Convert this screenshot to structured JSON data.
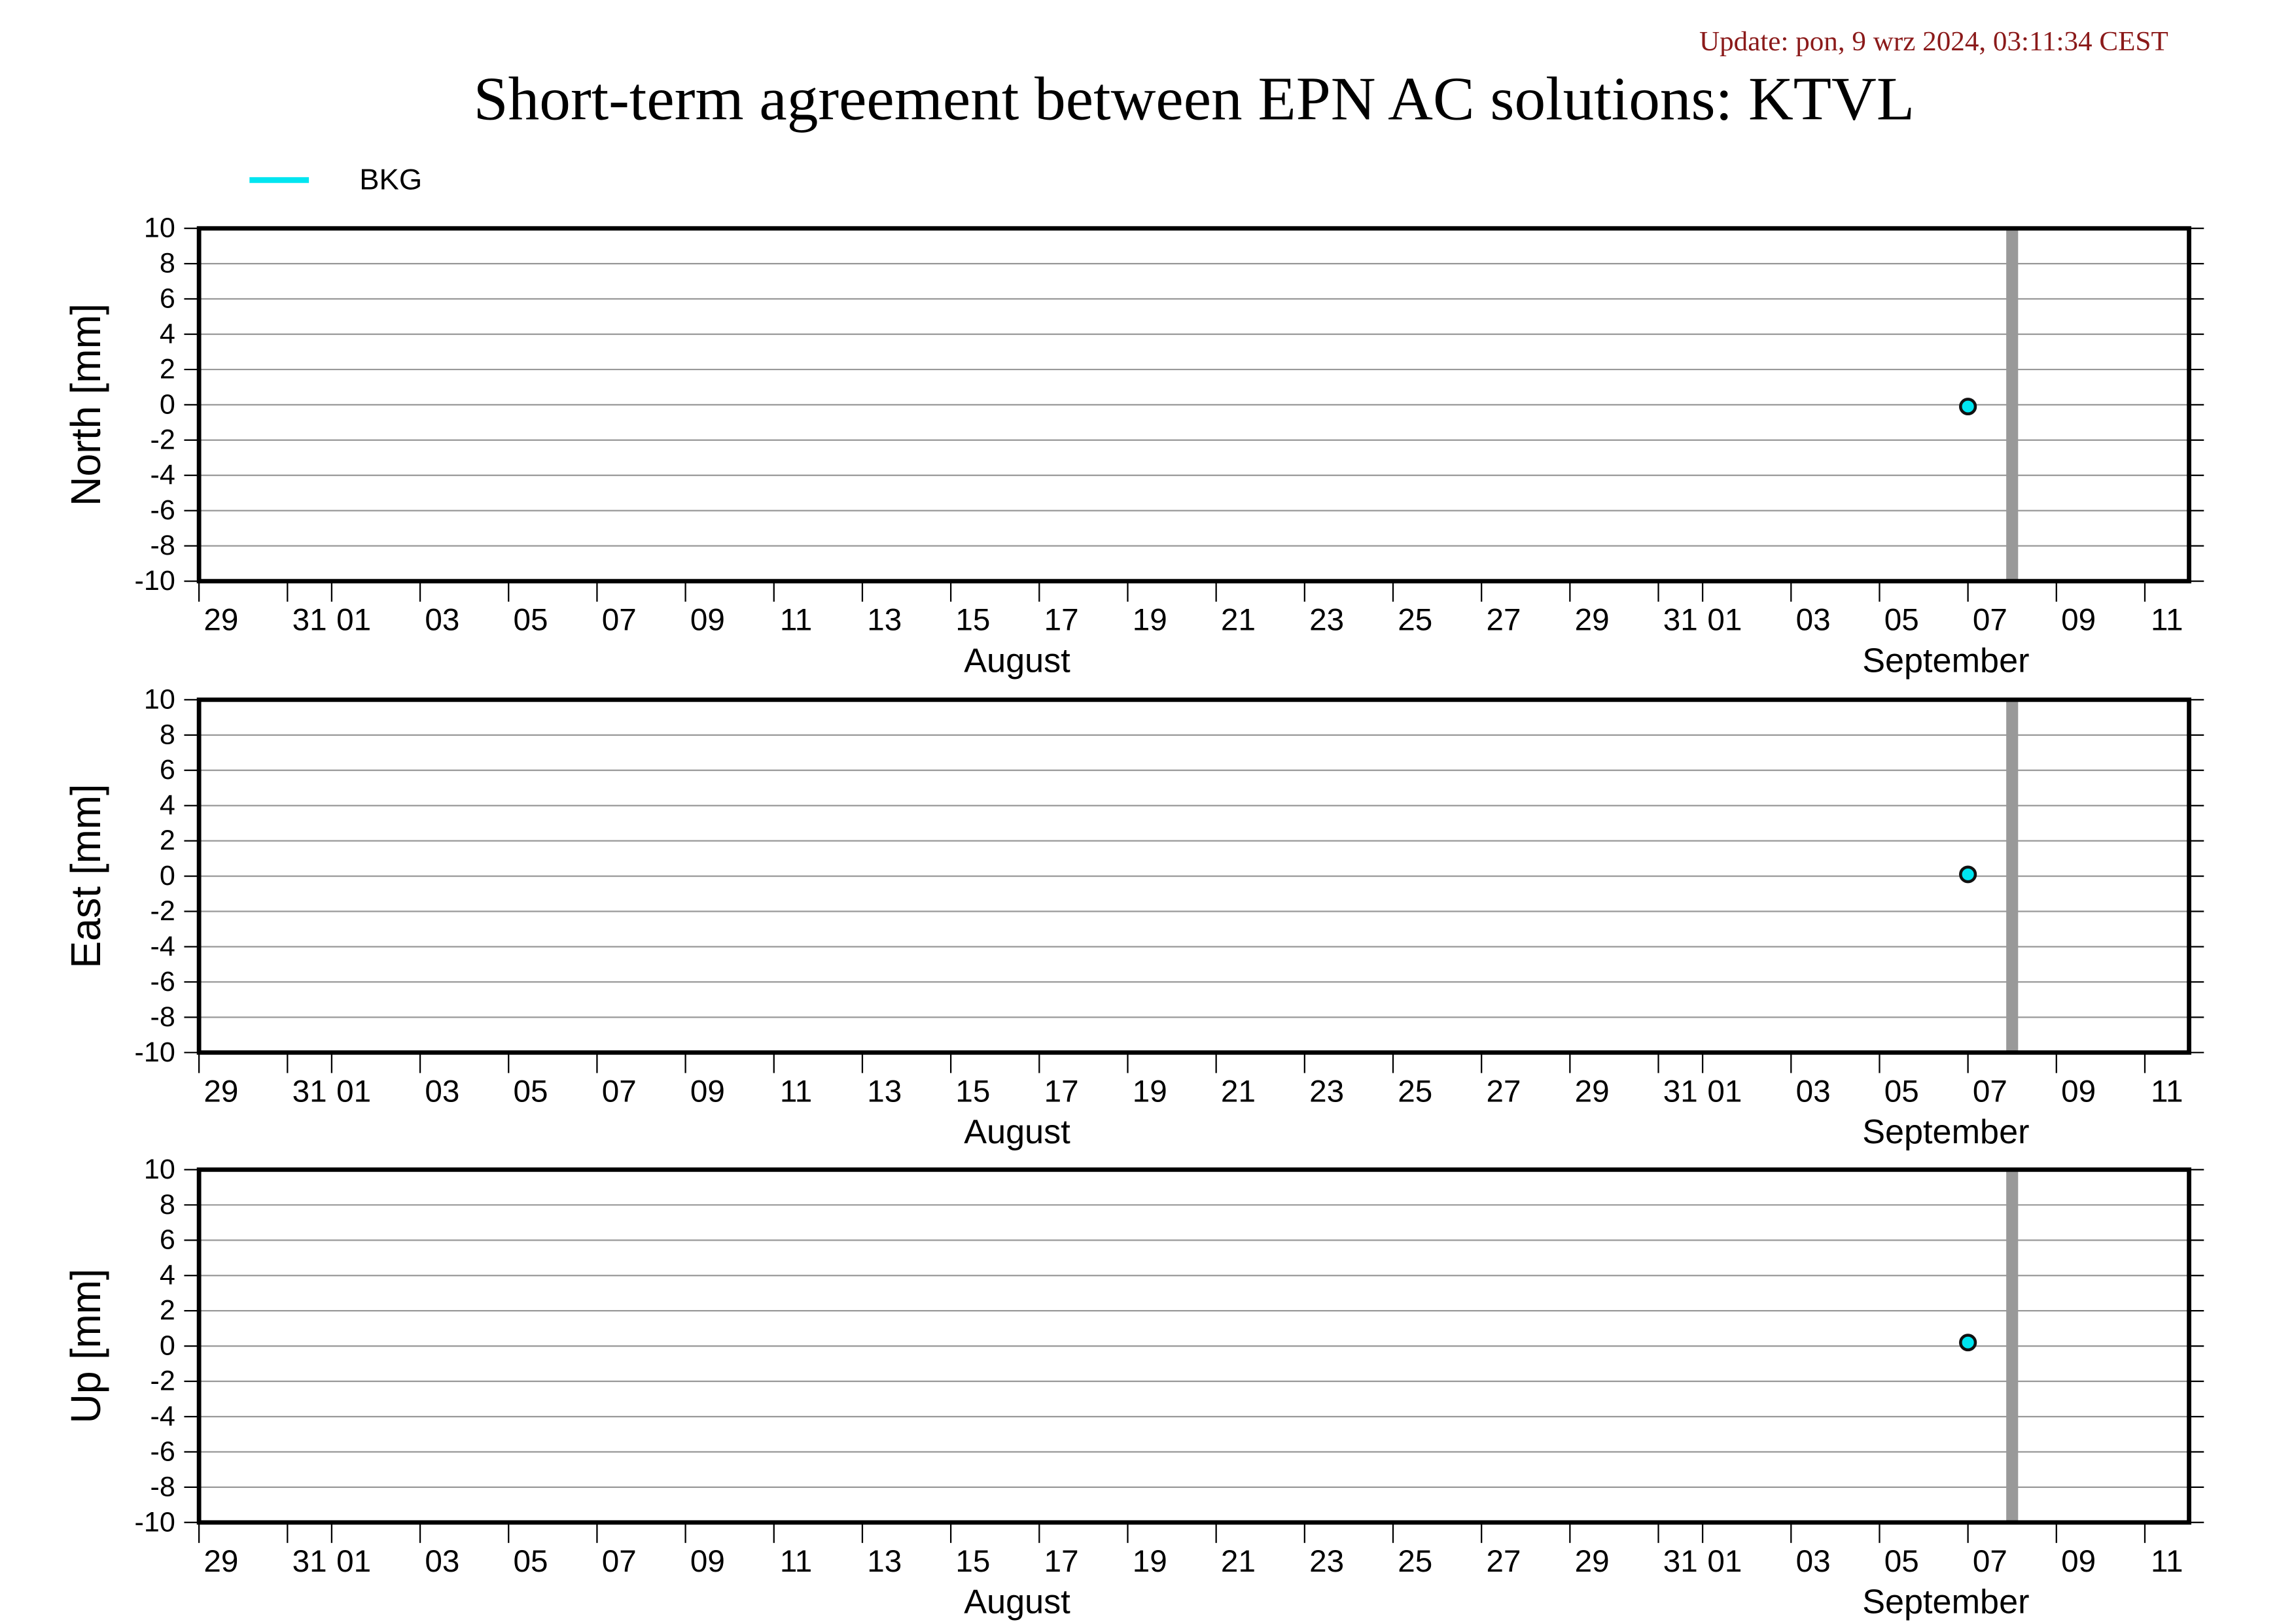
{
  "title": "Short-term agreement between EPN AC solutions: KTVL",
  "update": "Update: pon, 9 wrz 2024, 03:11:34 CEST",
  "chart_data": [
    {
      "type": "scatter",
      "ylabel": "North [mm]",
      "xlim": [
        "07-29",
        "09-12"
      ],
      "ylim": [
        -10,
        10
      ],
      "yticks": [
        10,
        8,
        6,
        4,
        2,
        0,
        -2,
        -4,
        -6,
        -8,
        -10
      ],
      "xticks": [
        {
          "value": "07-29",
          "label": "29"
        },
        {
          "value": "07-31",
          "label": "31"
        },
        {
          "value": "08-01",
          "label": "01"
        },
        {
          "value": "08-03",
          "label": "03"
        },
        {
          "value": "08-05",
          "label": "05"
        },
        {
          "value": "08-07",
          "label": "07"
        },
        {
          "value": "08-09",
          "label": "09"
        },
        {
          "value": "08-11",
          "label": "11"
        },
        {
          "value": "08-13",
          "label": "13"
        },
        {
          "value": "08-15",
          "label": "15"
        },
        {
          "value": "08-17",
          "label": "17"
        },
        {
          "value": "08-19",
          "label": "19"
        },
        {
          "value": "08-21",
          "label": "21"
        },
        {
          "value": "08-23",
          "label": "23"
        },
        {
          "value": "08-25",
          "label": "25"
        },
        {
          "value": "08-27",
          "label": "27"
        },
        {
          "value": "08-29",
          "label": "29"
        },
        {
          "value": "08-31",
          "label": "31"
        },
        {
          "value": "09-01",
          "label": "01"
        },
        {
          "value": "09-03",
          "label": "03"
        },
        {
          "value": "09-05",
          "label": "05"
        },
        {
          "value": "09-07",
          "label": "07"
        },
        {
          "value": "09-09",
          "label": "09"
        },
        {
          "value": "09-11",
          "label": "11"
        }
      ],
      "months": [
        {
          "value": "08-01",
          "label": "August"
        },
        {
          "value": "09-01",
          "label": "September"
        }
      ],
      "vline": "09-08",
      "grid": true,
      "x": [
        "09-07"
      ],
      "series": [
        {
          "name": "BKG",
          "color": "#00e5f0",
          "values": [
            -0.1
          ]
        }
      ]
    },
    {
      "type": "scatter",
      "ylabel": "East [mm]",
      "xlim": [
        "07-29",
        "09-12"
      ],
      "ylim": [
        -10,
        10
      ],
      "yticks": [
        10,
        8,
        6,
        4,
        2,
        0,
        -2,
        -4,
        -6,
        -8,
        -10
      ],
      "xticks": [
        {
          "value": "07-29",
          "label": "29"
        },
        {
          "value": "07-31",
          "label": "31"
        },
        {
          "value": "08-01",
          "label": "01"
        },
        {
          "value": "08-03",
          "label": "03"
        },
        {
          "value": "08-05",
          "label": "05"
        },
        {
          "value": "08-07",
          "label": "07"
        },
        {
          "value": "08-09",
          "label": "09"
        },
        {
          "value": "08-11",
          "label": "11"
        },
        {
          "value": "08-13",
          "label": "13"
        },
        {
          "value": "08-15",
          "label": "15"
        },
        {
          "value": "08-17",
          "label": "17"
        },
        {
          "value": "08-19",
          "label": "19"
        },
        {
          "value": "08-21",
          "label": "21"
        },
        {
          "value": "08-23",
          "label": "23"
        },
        {
          "value": "08-25",
          "label": "25"
        },
        {
          "value": "08-27",
          "label": "27"
        },
        {
          "value": "08-29",
          "label": "29"
        },
        {
          "value": "08-31",
          "label": "31"
        },
        {
          "value": "09-01",
          "label": "01"
        },
        {
          "value": "09-03",
          "label": "03"
        },
        {
          "value": "09-05",
          "label": "05"
        },
        {
          "value": "09-07",
          "label": "07"
        },
        {
          "value": "09-09",
          "label": "09"
        },
        {
          "value": "09-11",
          "label": "11"
        }
      ],
      "months": [
        {
          "value": "08-01",
          "label": "August"
        },
        {
          "value": "09-01",
          "label": "September"
        }
      ],
      "vline": "09-08",
      "grid": true,
      "x": [
        "09-07"
      ],
      "series": [
        {
          "color": "#00e5f0",
          "values": [
            0.1
          ]
        }
      ]
    },
    {
      "type": "scatter",
      "ylabel": "Up [mm]",
      "xlim": [
        "07-29",
        "09-12"
      ],
      "ylim": [
        -10,
        10
      ],
      "yticks": [
        10,
        8,
        6,
        4,
        2,
        0,
        -2,
        -4,
        -6,
        -8,
        -10
      ],
      "xticks": [
        {
          "value": "07-29",
          "label": "29"
        },
        {
          "value": "07-31",
          "label": "31"
        },
        {
          "value": "08-01",
          "label": "01"
        },
        {
          "value": "08-03",
          "label": "03"
        },
        {
          "value": "08-05",
          "label": "05"
        },
        {
          "value": "08-07",
          "label": "07"
        },
        {
          "value": "08-09",
          "label": "09"
        },
        {
          "value": "08-11",
          "label": "11"
        },
        {
          "value": "08-13",
          "label": "13"
        },
        {
          "value": "08-15",
          "label": "15"
        },
        {
          "value": "08-17",
          "label": "17"
        },
        {
          "value": "08-19",
          "label": "19"
        },
        {
          "value": "08-21",
          "label": "21"
        },
        {
          "value": "08-23",
          "label": "23"
        },
        {
          "value": "08-25",
          "label": "25"
        },
        {
          "value": "08-27",
          "label": "27"
        },
        {
          "value": "08-29",
          "label": "29"
        },
        {
          "value": "08-31",
          "label": "31"
        },
        {
          "value": "09-01",
          "label": "01"
        },
        {
          "value": "09-03",
          "label": "03"
        },
        {
          "value": "09-05",
          "label": "05"
        },
        {
          "value": "09-07",
          "label": "07"
        },
        {
          "value": "09-09",
          "label": "09"
        },
        {
          "value": "09-11",
          "label": "11"
        }
      ],
      "months": [
        {
          "value": "08-01",
          "label": "August"
        },
        {
          "value": "09-01",
          "label": "September"
        }
      ],
      "vline": "09-08",
      "grid": true,
      "x": [
        "09-07"
      ],
      "series": [
        {
          "color": "#00e5f0",
          "values": [
            0.2
          ]
        }
      ]
    }
  ]
}
